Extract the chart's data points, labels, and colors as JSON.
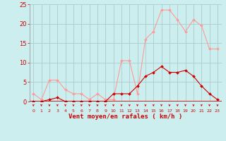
{
  "hours": [
    0,
    1,
    2,
    3,
    4,
    5,
    6,
    7,
    8,
    9,
    10,
    11,
    12,
    13,
    14,
    15,
    16,
    17,
    18,
    19,
    20,
    21,
    22,
    23
  ],
  "wind_avg": [
    0,
    0,
    0.5,
    1,
    0,
    0,
    0,
    0,
    0,
    0,
    2,
    2,
    2,
    4,
    6.5,
    7.5,
    9,
    7.5,
    7.5,
    8,
    6.5,
    4,
    2,
    0.5
  ],
  "wind_gust": [
    2,
    0.5,
    5.5,
    5.5,
    3,
    2,
    2,
    0.5,
    2,
    0.5,
    0.5,
    10.5,
    10.5,
    2,
    16,
    18,
    23.5,
    23.5,
    21,
    18,
    21,
    19.5,
    13.5,
    13.5
  ],
  "avg_color": "#cc0000",
  "gust_color": "#ff9999",
  "bg_color": "#cceeee",
  "grid_color": "#aacccc",
  "axis_color": "#cc0000",
  "xlabel": "Vent moyen/en rafales ( km/h )",
  "ylim": [
    0,
    25
  ],
  "yticks": [
    0,
    5,
    10,
    15,
    20,
    25
  ]
}
